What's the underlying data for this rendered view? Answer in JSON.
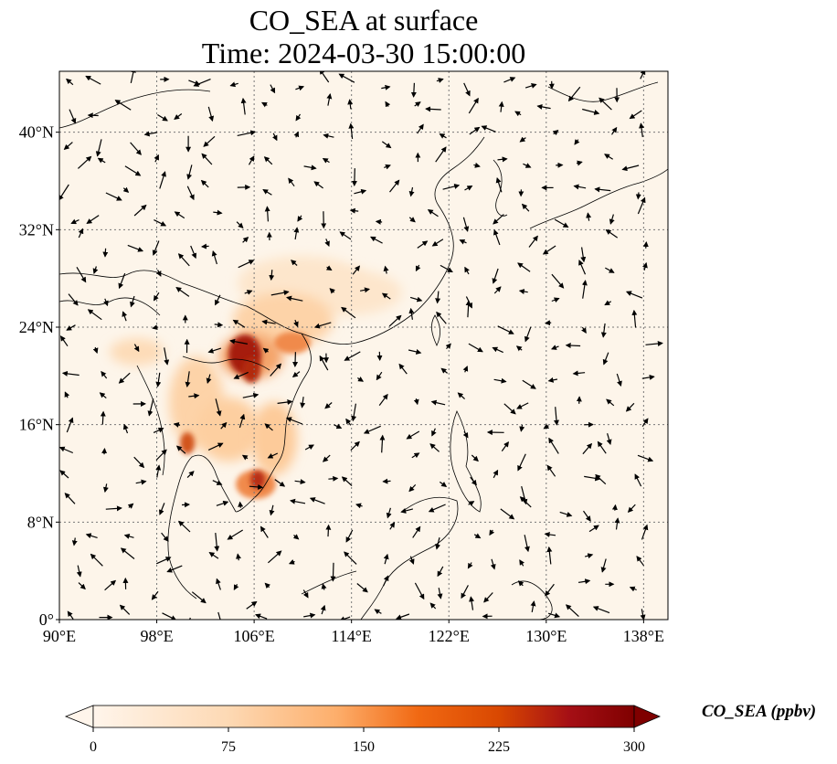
{
  "title": {
    "line1": "CO_SEA at surface",
    "line2": "Time: 2024-03-30 15:00:00"
  },
  "map": {
    "lon_range": [
      90,
      140
    ],
    "lat_range": [
      0,
      45
    ],
    "lon_ticks": [
      {
        "value": 90,
        "label": "90°E"
      },
      {
        "value": 98,
        "label": "98°E"
      },
      {
        "value": 106,
        "label": "106°E"
      },
      {
        "value": 114,
        "label": "114°E"
      },
      {
        "value": 122,
        "label": "122°E"
      },
      {
        "value": 130,
        "label": "130°E"
      },
      {
        "value": 138,
        "label": "138°E"
      }
    ],
    "lat_ticks": [
      {
        "value": 0,
        "label": "0°"
      },
      {
        "value": 8,
        "label": "8°N"
      },
      {
        "value": 16,
        "label": "16°N"
      },
      {
        "value": 24,
        "label": "24°N"
      },
      {
        "value": 32,
        "label": "32°N"
      },
      {
        "value": 40,
        "label": "40°N"
      }
    ],
    "gridlines": true,
    "background_color": "#fdf5ea",
    "coastline_color": "#000000",
    "wind_vectors": true
  },
  "colorbar": {
    "label": "CO_SEA (ppbv)",
    "min": 0,
    "max": 300,
    "ticks": [
      {
        "value": 0,
        "label": "0"
      },
      {
        "value": 75,
        "label": "75"
      },
      {
        "value": 150,
        "label": "150"
      },
      {
        "value": 225,
        "label": "225"
      },
      {
        "value": 300,
        "label": "300"
      }
    ],
    "colors": [
      "#fff5eb",
      "#fdd9b4",
      "#fdae6b",
      "#f16913",
      "#d94801",
      "#a63603",
      "#7f0000"
    ],
    "extend": "both"
  }
}
